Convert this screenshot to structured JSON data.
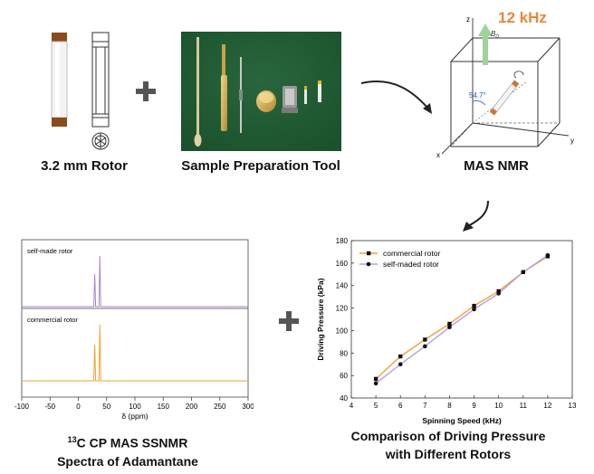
{
  "panels": {
    "rotor_caption": "3.2 mm Rotor",
    "tool_caption": "Sample Preparation Tool",
    "mas_caption": "MAS NMR",
    "spectra_caption_sup": "13",
    "spectra_caption_line1": "C CP MAS SSNMR",
    "spectra_caption_line2": "Spectra of Adamantane",
    "comparison_caption_line1": "Comparison of Driving Pressure",
    "comparison_caption_line2": "with Different  Rotors"
  },
  "mas": {
    "speed_label": "12 kHz",
    "field_label": "B",
    "field_sub": "0",
    "angle_label": "54.7°",
    "axis_z": "z",
    "axis_x": "x",
    "axis_y": "y",
    "speed_color": "#e8883a",
    "arrow_color": "#9ed39a",
    "rotor_color": "#d2732b"
  },
  "spectra": {
    "upper_label": "self-made rotor",
    "lower_label": "commercial rotor",
    "upper_color": "#a985c9",
    "lower_color": "#f0a030",
    "xlabel": "δ (ppm)",
    "xlim": [
      -100,
      300
    ],
    "xticks": [
      "-100",
      "-50",
      "0",
      "50",
      "100",
      "150",
      "200",
      "250",
      "300"
    ],
    "peaks_ppm": [
      29,
      38
    ]
  },
  "chart_data": {
    "type": "line",
    "xlabel": "Spinning Speed (kHz)",
    "ylabel": "Driving Pressure (kPa)",
    "xlim": [
      4,
      13
    ],
    "ylim": [
      40,
      180
    ],
    "xticks": [
      4,
      5,
      6,
      7,
      8,
      9,
      10,
      11,
      12,
      13
    ],
    "yticks": [
      40,
      60,
      80,
      100,
      120,
      140,
      160,
      180
    ],
    "grid": false,
    "legend_position": "top-left",
    "series": [
      {
        "name": "commercial rotor",
        "color": "#f0a030",
        "marker": "square",
        "x": [
          5,
          6,
          7,
          8,
          9,
          10,
          11,
          12
        ],
        "y": [
          57,
          77,
          92,
          106,
          122,
          135,
          152,
          166
        ]
      },
      {
        "name": "self-maded rotor",
        "color": "#b99de0",
        "marker": "circle",
        "x": [
          5,
          6,
          7,
          8,
          9,
          10,
          11,
          12
        ],
        "y": [
          53,
          70,
          86,
          103,
          119,
          133,
          152,
          167
        ]
      }
    ]
  }
}
